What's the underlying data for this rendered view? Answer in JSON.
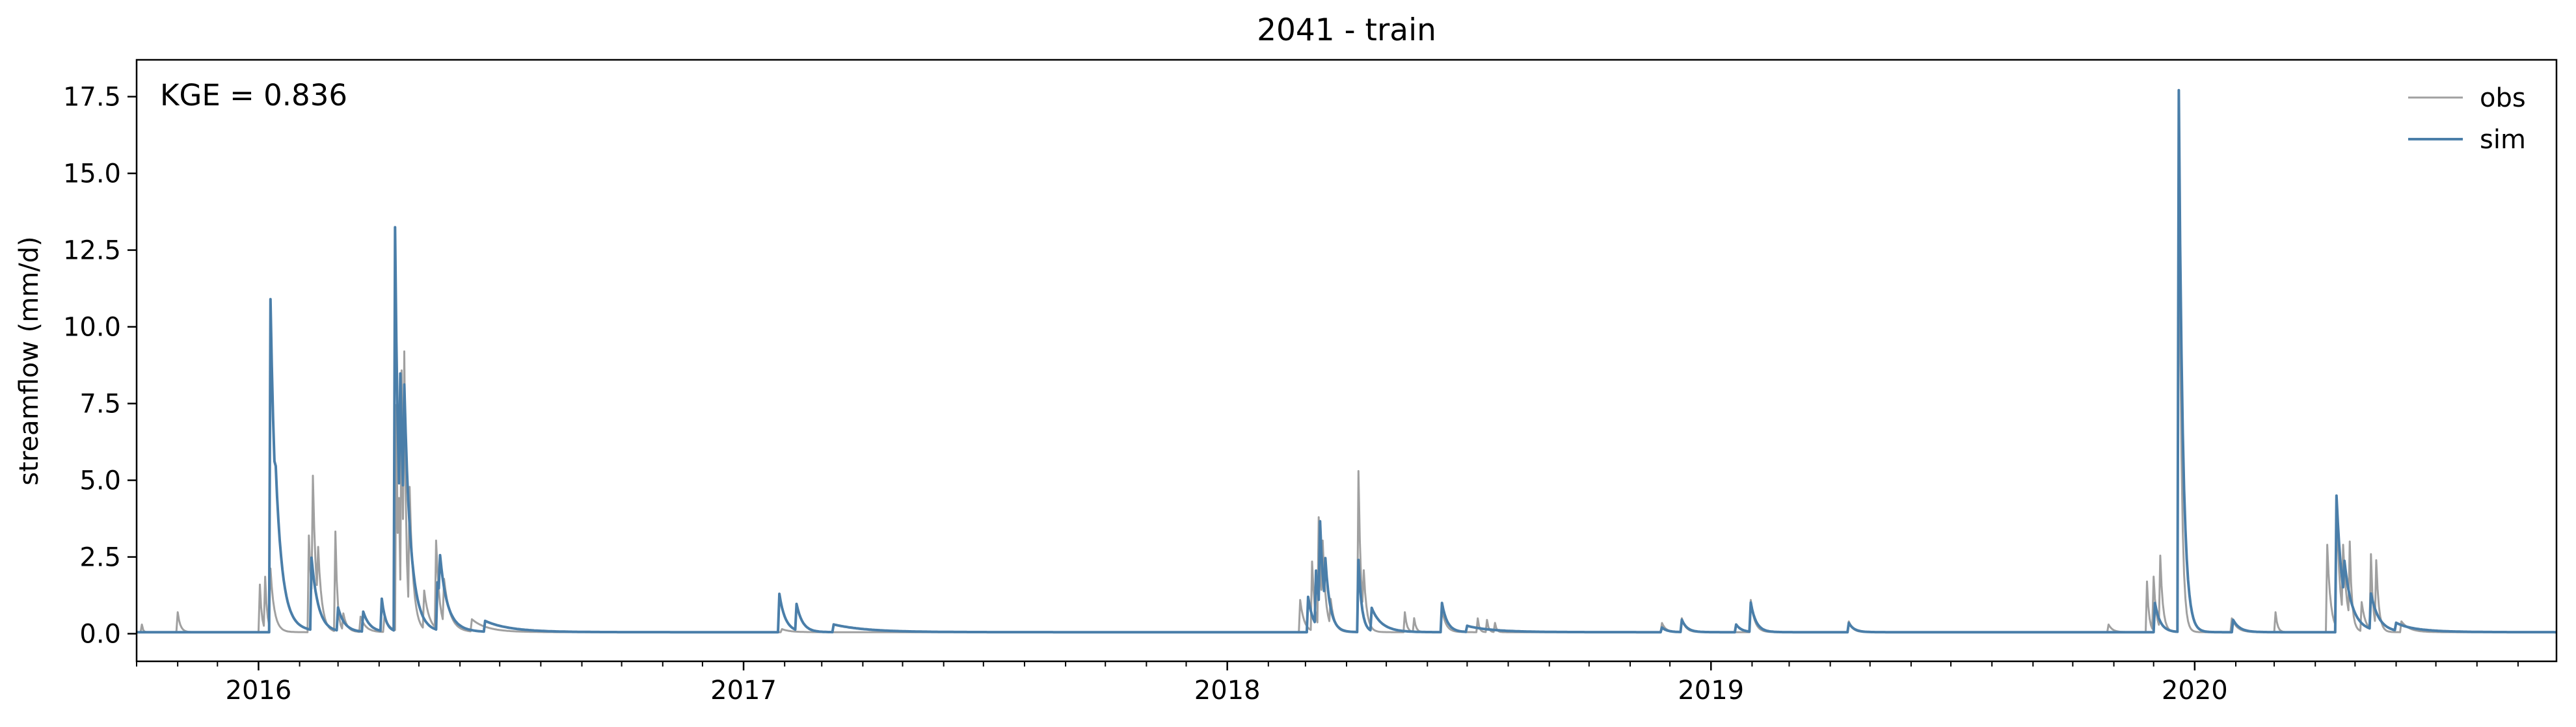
{
  "chart_data": {
    "type": "line",
    "title": "2041 - train",
    "xlabel": "",
    "ylabel": "streamflow (mm/d)",
    "annotation": "KGE = 0.836",
    "xlim": [
      "2015-10-01",
      "2020-09-30"
    ],
    "ylim": [
      -0.9,
      18.7
    ],
    "y_ticks": [
      0.0,
      2.5,
      5.0,
      7.5,
      10.0,
      12.5,
      15.0,
      17.5
    ],
    "y_tick_labels": [
      "0.0",
      "2.5",
      "5.0",
      "7.5",
      "10.0",
      "12.5",
      "15.0",
      "17.5"
    ],
    "x_ticks": [
      "2016-01-01",
      "2017-01-01",
      "2018-01-01",
      "2019-01-01",
      "2020-01-01"
    ],
    "x_tick_labels": [
      "2016",
      "2017",
      "2018",
      "2019",
      "2020"
    ],
    "minor_ticks": "monthly",
    "grid": false,
    "legend_position": "top-right",
    "colors": {
      "obs": "#a0a0a0",
      "sim": "#4a7ea9"
    },
    "baseflow": 0.05,
    "series": [
      {
        "name": "obs",
        "events": [
          [
            "2015-10-05",
            0.3,
            0.8
          ],
          [
            "2015-11-01",
            0.7,
            2.0
          ],
          [
            "2016-01-02",
            1.6,
            1.5
          ],
          [
            "2016-01-06",
            1.75,
            1.5
          ],
          [
            "2016-01-10",
            2.0,
            3.0
          ],
          [
            "2016-02-08",
            3.2,
            2.5
          ],
          [
            "2016-02-11",
            4.2,
            2.5
          ],
          [
            "2016-02-15",
            1.8,
            3.0
          ],
          [
            "2016-02-28",
            3.3,
            1.5
          ],
          [
            "2016-03-05",
            0.6,
            3.0
          ],
          [
            "2016-03-18",
            0.55,
            4.0
          ],
          [
            "2016-04-05",
            0.55,
            4.0
          ],
          [
            "2016-04-14",
            7.4,
            1.2
          ],
          [
            "2016-04-16",
            3.0,
            1.0
          ],
          [
            "2016-04-18",
            7.9,
            1.2
          ],
          [
            "2016-04-20",
            7.6,
            1.5
          ],
          [
            "2016-04-24",
            4.2,
            3.0
          ],
          [
            "2016-05-05",
            1.3,
            4.0
          ],
          [
            "2016-05-14",
            2.9,
            2.5
          ],
          [
            "2016-05-20",
            1.5,
            5.0
          ],
          [
            "2016-06-10",
            0.45,
            12.0
          ],
          [
            "2017-01-30",
            0.15,
            6.0
          ],
          [
            "2018-02-25",
            1.1,
            3.0
          ],
          [
            "2018-03-06",
            2.3,
            2.0
          ],
          [
            "2018-03-11",
            3.6,
            2.0
          ],
          [
            "2018-03-14",
            2.2,
            2.5
          ],
          [
            "2018-03-20",
            0.9,
            3.0
          ],
          [
            "2018-04-10",
            5.3,
            1.8
          ],
          [
            "2018-04-14",
            1.5,
            2.5
          ],
          [
            "2018-05-15",
            0.7,
            1.5
          ],
          [
            "2018-05-22",
            0.5,
            1.5
          ],
          [
            "2018-06-12",
            0.8,
            3.0
          ],
          [
            "2018-07-09",
            0.5,
            1.2
          ],
          [
            "2018-07-16",
            0.45,
            1.2
          ],
          [
            "2018-07-22",
            0.35,
            1.2
          ],
          [
            "2018-11-25",
            0.35,
            3.0
          ],
          [
            "2018-12-10",
            0.5,
            3.0
          ],
          [
            "2019-01-31",
            1.1,
            3.0
          ],
          [
            "2019-04-15",
            0.4,
            3.0
          ],
          [
            "2019-10-28",
            0.3,
            3.0
          ],
          [
            "2019-11-26",
            1.7,
            1.5
          ],
          [
            "2019-12-01",
            1.8,
            2.0
          ],
          [
            "2019-12-06",
            2.4,
            2.0
          ],
          [
            "2019-12-20",
            17.5,
            1.8
          ],
          [
            "2020-01-29",
            0.5,
            4.0
          ],
          [
            "2020-03-02",
            0.7,
            1.5
          ],
          [
            "2020-04-10",
            2.9,
            2.5
          ],
          [
            "2020-04-17",
            4.3,
            2.5
          ],
          [
            "2020-04-22",
            2.3,
            3.0
          ],
          [
            "2020-04-27",
            2.5,
            1.5
          ],
          [
            "2020-05-06",
            1.0,
            3.0
          ],
          [
            "2020-05-13",
            2.5,
            1.5
          ],
          [
            "2020-05-17",
            2.2,
            2.0
          ],
          [
            "2020-06-05",
            0.4,
            6.0
          ]
        ]
      },
      {
        "name": "sim",
        "events": [
          [
            "2016-01-10",
            10.9,
            4.5
          ],
          [
            "2016-01-14",
            1.0,
            10.0
          ],
          [
            "2016-02-10",
            2.4,
            5.0
          ],
          [
            "2016-03-01",
            0.8,
            5.0
          ],
          [
            "2016-03-20",
            0.7,
            5.0
          ],
          [
            "2016-04-03",
            1.1,
            3.0
          ],
          [
            "2016-04-13",
            13.2,
            3.0
          ],
          [
            "2016-04-17",
            5.0,
            4.0
          ],
          [
            "2016-04-20",
            4.5,
            6.0
          ],
          [
            "2016-05-15",
            1.6,
            8.0
          ],
          [
            "2016-05-17",
            1.3,
            4.0
          ],
          [
            "2016-06-20",
            0.4,
            20.0
          ],
          [
            "2017-01-28",
            1.3,
            4.5
          ],
          [
            "2017-02-10",
            0.9,
            4.5
          ],
          [
            "2017-03-10",
            0.3,
            25.0
          ],
          [
            "2018-03-03",
            1.2,
            4.0
          ],
          [
            "2018-03-09",
            1.8,
            3.0
          ],
          [
            "2018-03-12",
            2.9,
            3.0
          ],
          [
            "2018-03-16",
            1.5,
            4.0
          ],
          [
            "2018-04-10",
            2.4,
            2.5
          ],
          [
            "2018-04-20",
            0.8,
            8.0
          ],
          [
            "2018-06-12",
            1.0,
            4.0
          ],
          [
            "2018-07-01",
            0.25,
            20.0
          ],
          [
            "2018-11-25",
            0.2,
            4.0
          ],
          [
            "2018-12-10",
            0.45,
            4.0
          ],
          [
            "2019-01-20",
            0.3,
            4.0
          ],
          [
            "2019-01-31",
            1.0,
            4.0
          ],
          [
            "2019-04-15",
            0.35,
            4.0
          ],
          [
            "2019-12-02",
            1.0,
            4.0
          ],
          [
            "2019-12-20",
            17.7,
            3.0
          ],
          [
            "2020-01-30",
            0.45,
            5.0
          ],
          [
            "2020-04-17",
            4.5,
            4.5
          ],
          [
            "2020-04-23",
            1.2,
            8.0
          ],
          [
            "2020-05-13",
            1.2,
            6.0
          ],
          [
            "2020-06-01",
            0.3,
            18.0
          ]
        ]
      }
    ]
  }
}
